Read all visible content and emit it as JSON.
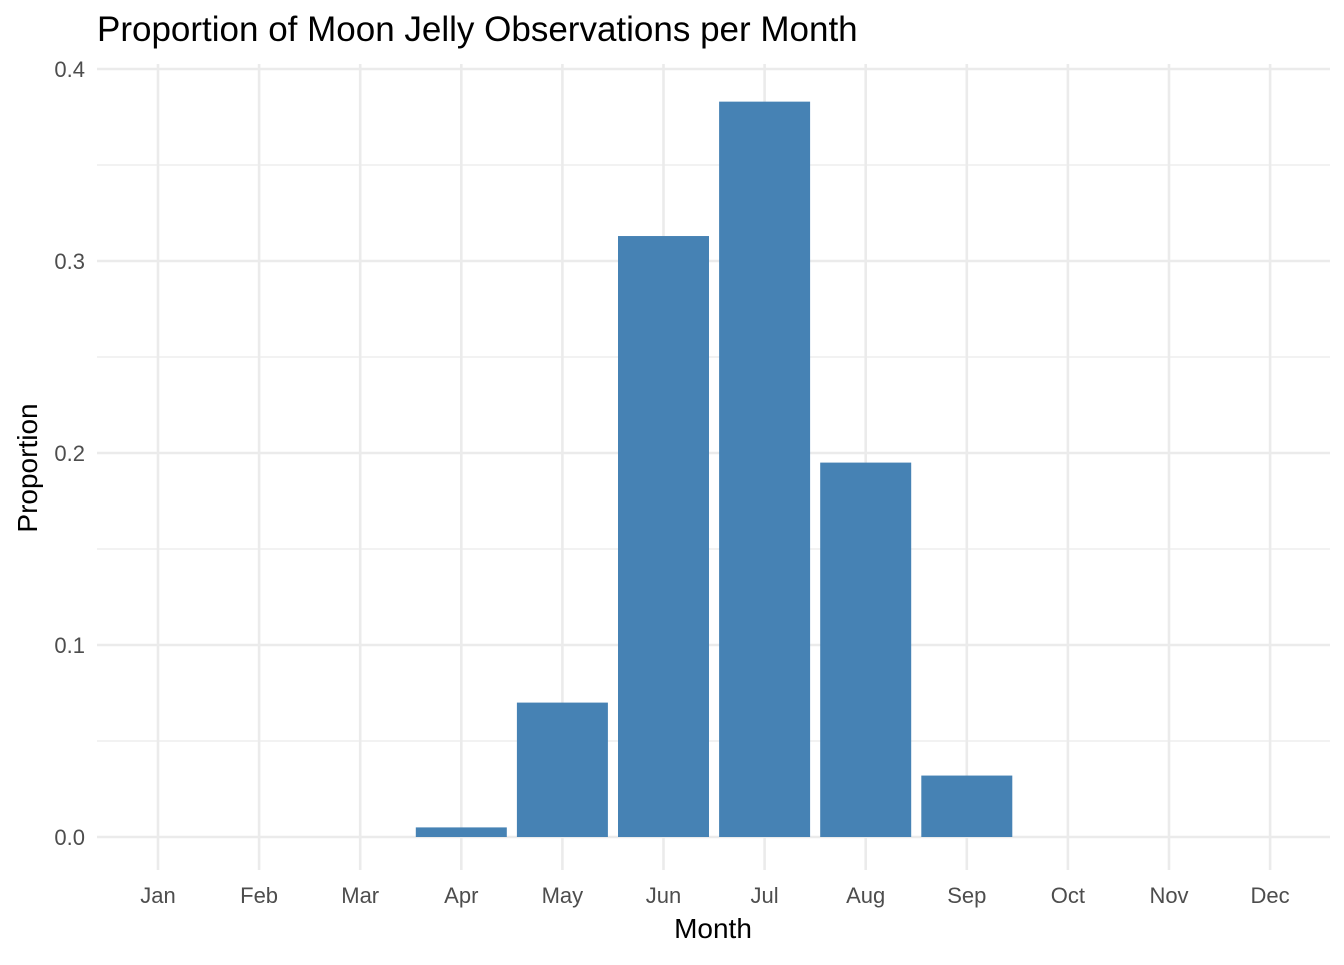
{
  "chart_data": {
    "type": "bar",
    "title": "Proportion of Moon Jelly Observations per Month",
    "xlabel": "Month",
    "ylabel": "Proportion",
    "categories": [
      "Jan",
      "Feb",
      "Mar",
      "Apr",
      "May",
      "Jun",
      "Jul",
      "Aug",
      "Sep",
      "Oct",
      "Nov",
      "Dec"
    ],
    "values": [
      0,
      0,
      0,
      0.005,
      0.07,
      0.313,
      0.383,
      0.195,
      0.032,
      0,
      0,
      0
    ],
    "ylim": [
      0,
      0.4
    ],
    "yticks": [
      "0.0",
      "0.1",
      "0.2",
      "0.3",
      "0.4"
    ],
    "grid": true,
    "legend": "none",
    "bar_color": "#4682B4"
  }
}
